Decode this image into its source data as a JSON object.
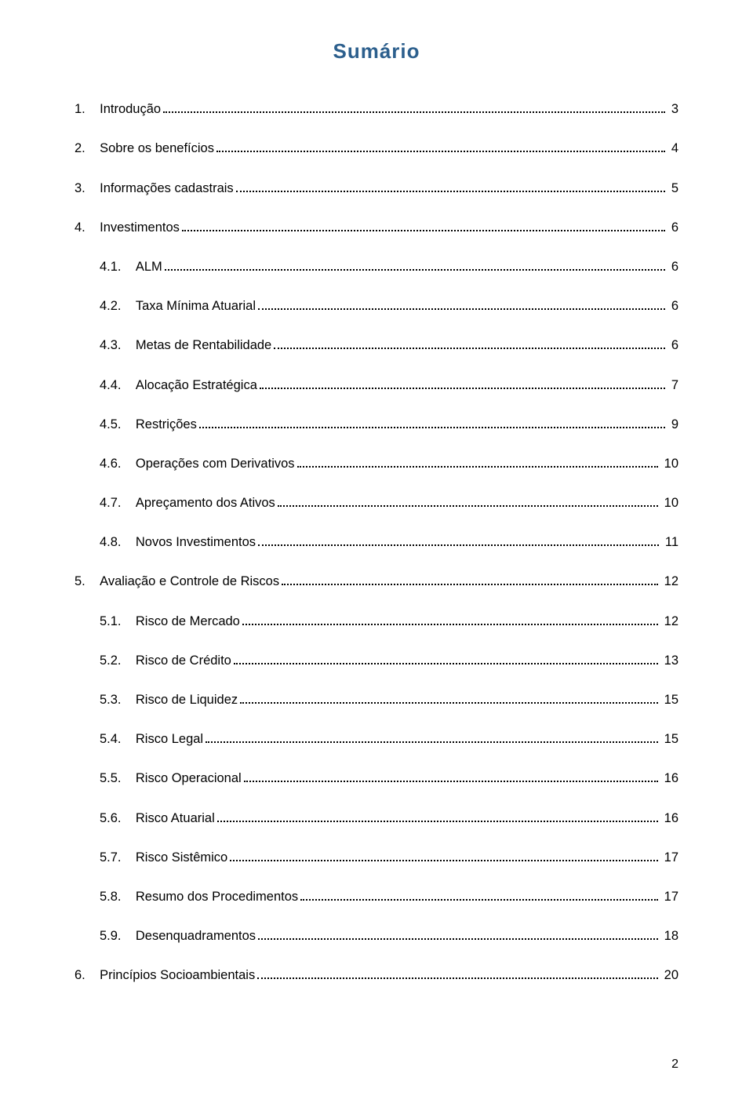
{
  "title": "Sumário",
  "title_color": "#2c5f8d",
  "text_color": "#000000",
  "background_color": "#ffffff",
  "leader_color": "#000000",
  "page_number": "2",
  "toc": [
    {
      "num": "1.",
      "label": "Introdução",
      "page": "3",
      "indent": 0
    },
    {
      "num": "2.",
      "label": "Sobre os benefícios",
      "page": "4",
      "indent": 0
    },
    {
      "num": "3.",
      "label": "Informações cadastrais",
      "page": "5",
      "indent": 0
    },
    {
      "num": "4.",
      "label": "Investimentos",
      "page": "6",
      "indent": 0
    },
    {
      "num": "4.1.",
      "label": "ALM",
      "page": "6",
      "indent": 1
    },
    {
      "num": "4.2.",
      "label": "Taxa Mínima Atuarial",
      "page": "6",
      "indent": 1
    },
    {
      "num": "4.3.",
      "label": "Metas de Rentabilidade",
      "page": "6",
      "indent": 1
    },
    {
      "num": "4.4.",
      "label": "Alocação Estratégica",
      "page": "7",
      "indent": 1
    },
    {
      "num": "4.5.",
      "label": "Restrições",
      "page": "9",
      "indent": 1
    },
    {
      "num": "4.6.",
      "label": "Operações com Derivativos",
      "page": "10",
      "indent": 1
    },
    {
      "num": "4.7.",
      "label": "Apreçamento dos Ativos",
      "page": "10",
      "indent": 1
    },
    {
      "num": "4.8.",
      "label": "Novos Investimentos",
      "page": "11",
      "indent": 1
    },
    {
      "num": "5.",
      "label": "Avaliação e Controle de Riscos",
      "page": "12",
      "indent": 0
    },
    {
      "num": "5.1.",
      "label": "Risco de Mercado",
      "page": "12",
      "indent": 1
    },
    {
      "num": "5.2.",
      "label": "Risco de Crédito",
      "page": "13",
      "indent": 1
    },
    {
      "num": "5.3.",
      "label": "Risco de Liquidez",
      "page": "15",
      "indent": 1
    },
    {
      "num": "5.4.",
      "label": "Risco Legal",
      "page": "15",
      "indent": 1
    },
    {
      "num": "5.5.",
      "label": "Risco Operacional",
      "page": "16",
      "indent": 1
    },
    {
      "num": "5.6.",
      "label": "Risco Atuarial",
      "page": "16",
      "indent": 1
    },
    {
      "num": "5.7.",
      "label": "Risco Sistêmico",
      "page": "17",
      "indent": 1
    },
    {
      "num": "5.8.",
      "label": "Resumo dos Procedimentos",
      "page": "17",
      "indent": 1
    },
    {
      "num": "5.9.",
      "label": "Desenquadramentos",
      "page": "18",
      "indent": 1
    },
    {
      "num": "6.",
      "label": "Princípios Socioambientais",
      "page": "20",
      "indent": 0
    }
  ]
}
